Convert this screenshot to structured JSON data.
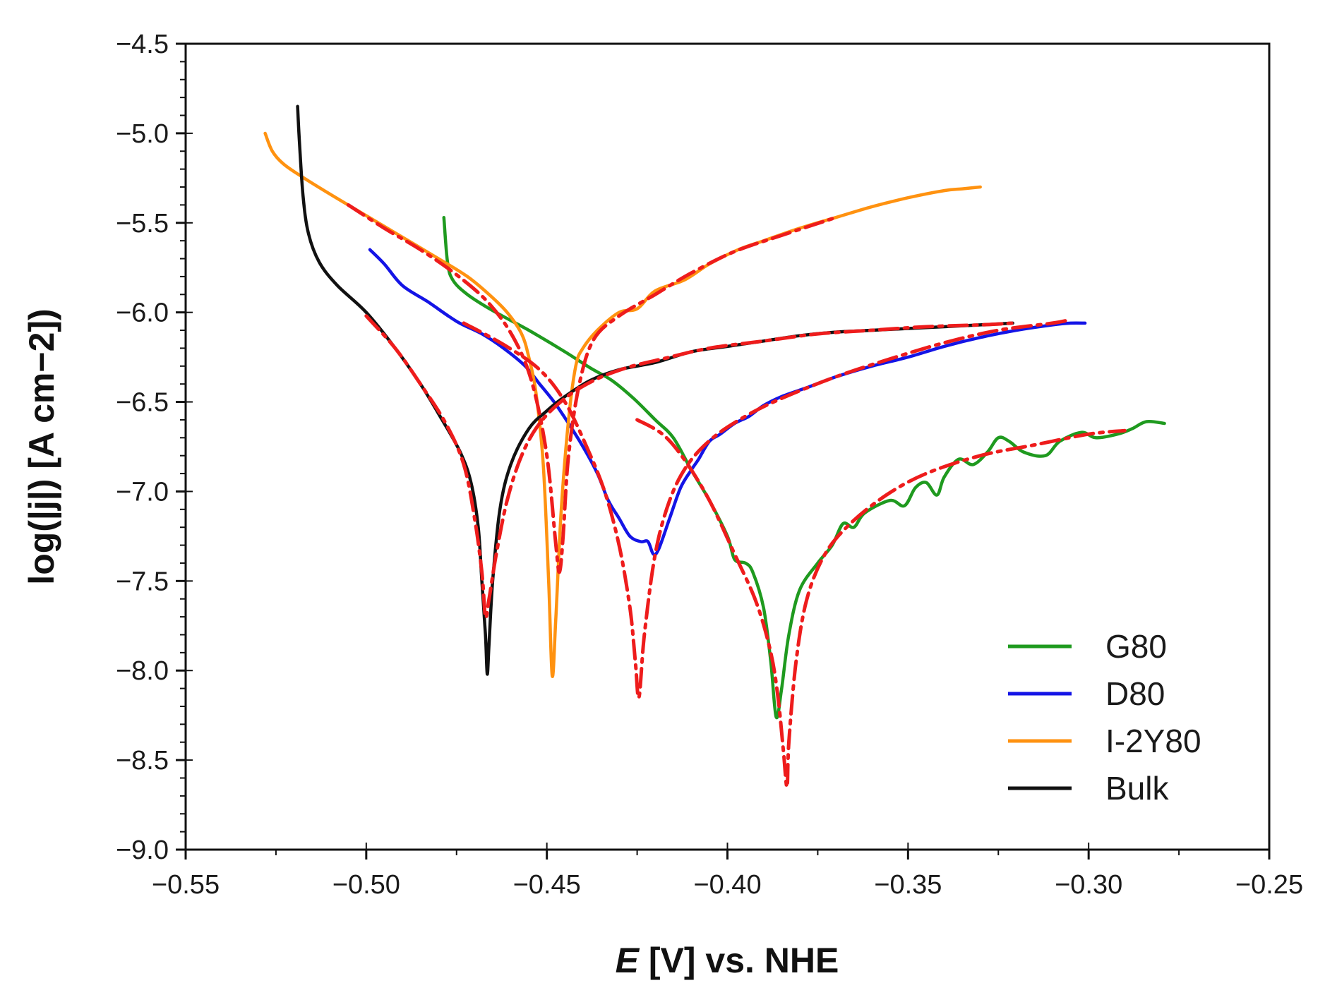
{
  "chart_data": {
    "type": "line",
    "title": "",
    "xlabel": {
      "italic": "E",
      "rest": " [V] vs. NHE"
    },
    "ylabel": "log(|j|) [A cm−2])",
    "xlim": [
      -0.55,
      -0.25
    ],
    "ylim": [
      -9.0,
      -4.5
    ],
    "xticks": [
      -0.55,
      -0.5,
      -0.45,
      -0.4,
      -0.35,
      -0.3,
      -0.25
    ],
    "xtick_labels": [
      "−0.55",
      "−0.50",
      "−0.45",
      "−0.40",
      "−0.35",
      "−0.30",
      "−0.25"
    ],
    "yticks": [
      -4.5,
      -5.0,
      -5.5,
      -6.0,
      -6.5,
      -7.0,
      -7.5,
      -8.0,
      -8.5,
      -9.0
    ],
    "ytick_labels": [
      "−4.5",
      "−5.0",
      "−5.5",
      "−6.0",
      "−6.5",
      "−7.0",
      "−7.5",
      "−8.0",
      "−8.5",
      "−9.0"
    ],
    "legend_position": "bottom-right",
    "fit_color": "#ee1c1c",
    "series": [
      {
        "name": "G80",
        "color": "#1f9a1f",
        "points": [
          [
            -0.4785,
            -5.47
          ],
          [
            -0.4775,
            -5.72
          ],
          [
            -0.476,
            -5.82
          ],
          [
            -0.472,
            -5.9
          ],
          [
            -0.465,
            -5.99
          ],
          [
            -0.455,
            -6.1
          ],
          [
            -0.445,
            -6.22
          ],
          [
            -0.438,
            -6.31
          ],
          [
            -0.432,
            -6.38
          ],
          [
            -0.426,
            -6.48
          ],
          [
            -0.42,
            -6.6
          ],
          [
            -0.415,
            -6.7
          ],
          [
            -0.41,
            -6.88
          ],
          [
            -0.405,
            -7.05
          ],
          [
            -0.4,
            -7.25
          ],
          [
            -0.398,
            -7.38
          ],
          [
            -0.395,
            -7.4
          ],
          [
            -0.393,
            -7.45
          ],
          [
            -0.39,
            -7.65
          ],
          [
            -0.388,
            -7.95
          ],
          [
            -0.3865,
            -8.26
          ],
          [
            -0.385,
            -8.1
          ],
          [
            -0.383,
            -7.8
          ],
          [
            -0.38,
            -7.55
          ],
          [
            -0.375,
            -7.4
          ],
          [
            -0.371,
            -7.3
          ],
          [
            -0.368,
            -7.18
          ],
          [
            -0.365,
            -7.2
          ],
          [
            -0.362,
            -7.12
          ],
          [
            -0.355,
            -7.05
          ],
          [
            -0.351,
            -7.08
          ],
          [
            -0.348,
            -6.98
          ],
          [
            -0.345,
            -6.95
          ],
          [
            -0.342,
            -7.02
          ],
          [
            -0.34,
            -6.92
          ],
          [
            -0.336,
            -6.82
          ],
          [
            -0.332,
            -6.85
          ],
          [
            -0.328,
            -6.78
          ],
          [
            -0.325,
            -6.7
          ],
          [
            -0.322,
            -6.72
          ],
          [
            -0.318,
            -6.78
          ],
          [
            -0.312,
            -6.8
          ],
          [
            -0.308,
            -6.72
          ],
          [
            -0.302,
            -6.67
          ],
          [
            -0.298,
            -6.7
          ],
          [
            -0.292,
            -6.68
          ],
          [
            -0.288,
            -6.65
          ],
          [
            -0.284,
            -6.61
          ],
          [
            -0.279,
            -6.62
          ]
        ]
      },
      {
        "name": "D80",
        "color": "#1414e6",
        "points": [
          [
            -0.499,
            -5.65
          ],
          [
            -0.495,
            -5.73
          ],
          [
            -0.49,
            -5.85
          ],
          [
            -0.483,
            -5.94
          ],
          [
            -0.475,
            -6.05
          ],
          [
            -0.468,
            -6.12
          ],
          [
            -0.462,
            -6.2
          ],
          [
            -0.456,
            -6.3
          ],
          [
            -0.452,
            -6.4
          ],
          [
            -0.448,
            -6.5
          ],
          [
            -0.444,
            -6.62
          ],
          [
            -0.44,
            -6.75
          ],
          [
            -0.436,
            -6.9
          ],
          [
            -0.433,
            -7.05
          ],
          [
            -0.43,
            -7.15
          ],
          [
            -0.427,
            -7.25
          ],
          [
            -0.424,
            -7.28
          ],
          [
            -0.422,
            -7.28
          ],
          [
            -0.4205,
            -7.35
          ],
          [
            -0.419,
            -7.32
          ],
          [
            -0.416,
            -7.15
          ],
          [
            -0.413,
            -6.98
          ],
          [
            -0.41,
            -6.88
          ],
          [
            -0.408,
            -6.82
          ],
          [
            -0.405,
            -6.72
          ],
          [
            -0.402,
            -6.68
          ],
          [
            -0.398,
            -6.62
          ],
          [
            -0.394,
            -6.58
          ],
          [
            -0.39,
            -6.52
          ],
          [
            -0.385,
            -6.47
          ],
          [
            -0.378,
            -6.42
          ],
          [
            -0.37,
            -6.36
          ],
          [
            -0.36,
            -6.3
          ],
          [
            -0.35,
            -6.25
          ],
          [
            -0.34,
            -6.19
          ],
          [
            -0.33,
            -6.14
          ],
          [
            -0.32,
            -6.1
          ],
          [
            -0.31,
            -6.07
          ],
          [
            -0.305,
            -6.06
          ],
          [
            -0.301,
            -6.06
          ]
        ]
      },
      {
        "name": "I-2Y80",
        "color": "#ff9210",
        "points": [
          [
            -0.528,
            -5.0
          ],
          [
            -0.526,
            -5.1
          ],
          [
            -0.523,
            -5.17
          ],
          [
            -0.518,
            -5.24
          ],
          [
            -0.51,
            -5.34
          ],
          [
            -0.5,
            -5.46
          ],
          [
            -0.49,
            -5.58
          ],
          [
            -0.48,
            -5.7
          ],
          [
            -0.472,
            -5.8
          ],
          [
            -0.466,
            -5.9
          ],
          [
            -0.461,
            -6.0
          ],
          [
            -0.457,
            -6.12
          ],
          [
            -0.455,
            -6.25
          ],
          [
            -0.453,
            -6.45
          ],
          [
            -0.451,
            -6.85
          ],
          [
            -0.4495,
            -7.5
          ],
          [
            -0.4485,
            -8.03
          ],
          [
            -0.4475,
            -7.7
          ],
          [
            -0.446,
            -7.1
          ],
          [
            -0.444,
            -6.6
          ],
          [
            -0.442,
            -6.3
          ],
          [
            -0.44,
            -6.2
          ],
          [
            -0.436,
            -6.1
          ],
          [
            -0.43,
            -6.0
          ],
          [
            -0.425,
            -5.98
          ],
          [
            -0.42,
            -5.88
          ],
          [
            -0.412,
            -5.82
          ],
          [
            -0.405,
            -5.73
          ],
          [
            -0.397,
            -5.65
          ],
          [
            -0.39,
            -5.6
          ],
          [
            -0.38,
            -5.53
          ],
          [
            -0.37,
            -5.47
          ],
          [
            -0.36,
            -5.41
          ],
          [
            -0.35,
            -5.36
          ],
          [
            -0.34,
            -5.32
          ],
          [
            -0.335,
            -5.31
          ],
          [
            -0.33,
            -5.3
          ]
        ]
      },
      {
        "name": "Bulk",
        "color": "#111111",
        "points": [
          [
            -0.519,
            -4.85
          ],
          [
            -0.5185,
            -5.05
          ],
          [
            -0.5175,
            -5.35
          ],
          [
            -0.516,
            -5.56
          ],
          [
            -0.513,
            -5.72
          ],
          [
            -0.508,
            -5.85
          ],
          [
            -0.5,
            -6.0
          ],
          [
            -0.492,
            -6.2
          ],
          [
            -0.485,
            -6.4
          ],
          [
            -0.479,
            -6.6
          ],
          [
            -0.474,
            -6.78
          ],
          [
            -0.471,
            -6.95
          ],
          [
            -0.469,
            -7.2
          ],
          [
            -0.468,
            -7.5
          ],
          [
            -0.467,
            -7.8
          ],
          [
            -0.4665,
            -8.02
          ],
          [
            -0.466,
            -7.85
          ],
          [
            -0.465,
            -7.5
          ],
          [
            -0.463,
            -7.1
          ],
          [
            -0.46,
            -6.85
          ],
          [
            -0.455,
            -6.65
          ],
          [
            -0.45,
            -6.55
          ],
          [
            -0.445,
            -6.47
          ],
          [
            -0.438,
            -6.38
          ],
          [
            -0.43,
            -6.32
          ],
          [
            -0.42,
            -6.28
          ],
          [
            -0.41,
            -6.22
          ],
          [
            -0.4,
            -6.19
          ],
          [
            -0.39,
            -6.16
          ],
          [
            -0.38,
            -6.13
          ],
          [
            -0.37,
            -6.11
          ],
          [
            -0.36,
            -6.1
          ],
          [
            -0.35,
            -6.09
          ],
          [
            -0.34,
            -6.08
          ],
          [
            -0.33,
            -6.07
          ],
          [
            -0.321,
            -6.06
          ]
        ]
      }
    ],
    "fits": [
      {
        "name": "G80 fit",
        "points": [
          [
            -0.425,
            -6.6
          ],
          [
            -0.418,
            -6.68
          ],
          [
            -0.412,
            -6.82
          ],
          [
            -0.405,
            -7.05
          ],
          [
            -0.398,
            -7.35
          ],
          [
            -0.392,
            -7.62
          ],
          [
            -0.388,
            -7.9
          ],
          [
            -0.386,
            -8.15
          ],
          [
            -0.3845,
            -8.45
          ],
          [
            -0.3835,
            -8.65
          ],
          [
            -0.383,
            -8.4
          ],
          [
            -0.381,
            -7.95
          ],
          [
            -0.378,
            -7.6
          ],
          [
            -0.373,
            -7.35
          ],
          [
            -0.366,
            -7.18
          ],
          [
            -0.356,
            -7.02
          ],
          [
            -0.345,
            -6.9
          ],
          [
            -0.33,
            -6.8
          ],
          [
            -0.315,
            -6.74
          ],
          [
            -0.3,
            -6.68
          ],
          [
            -0.29,
            -6.66
          ]
        ]
      },
      {
        "name": "D80 fit",
        "points": [
          [
            -0.473,
            -6.06
          ],
          [
            -0.462,
            -6.18
          ],
          [
            -0.452,
            -6.32
          ],
          [
            -0.445,
            -6.5
          ],
          [
            -0.439,
            -6.75
          ],
          [
            -0.434,
            -7.0
          ],
          [
            -0.43,
            -7.3
          ],
          [
            -0.427,
            -7.65
          ],
          [
            -0.4255,
            -7.95
          ],
          [
            -0.4245,
            -8.15
          ],
          [
            -0.423,
            -7.8
          ],
          [
            -0.42,
            -7.35
          ],
          [
            -0.416,
            -7.05
          ],
          [
            -0.411,
            -6.85
          ],
          [
            -0.404,
            -6.7
          ],
          [
            -0.395,
            -6.58
          ],
          [
            -0.385,
            -6.48
          ],
          [
            -0.37,
            -6.36
          ],
          [
            -0.355,
            -6.26
          ],
          [
            -0.34,
            -6.17
          ],
          [
            -0.325,
            -6.1
          ],
          [
            -0.31,
            -6.06
          ],
          [
            -0.305,
            -6.04
          ]
        ]
      },
      {
        "name": "I-2Y80 fit",
        "points": [
          [
            -0.505,
            -5.4
          ],
          [
            -0.495,
            -5.53
          ],
          [
            -0.485,
            -5.65
          ],
          [
            -0.475,
            -5.79
          ],
          [
            -0.466,
            -5.95
          ],
          [
            -0.459,
            -6.15
          ],
          [
            -0.454,
            -6.4
          ],
          [
            -0.45,
            -6.8
          ],
          [
            -0.4475,
            -7.3
          ],
          [
            -0.4465,
            -7.45
          ],
          [
            -0.4455,
            -7.25
          ],
          [
            -0.444,
            -6.8
          ],
          [
            -0.441,
            -6.4
          ],
          [
            -0.437,
            -6.15
          ],
          [
            -0.43,
            -6.02
          ],
          [
            -0.42,
            -5.9
          ],
          [
            -0.41,
            -5.78
          ],
          [
            -0.398,
            -5.66
          ],
          [
            -0.385,
            -5.57
          ],
          [
            -0.37,
            -5.47
          ]
        ]
      },
      {
        "name": "Bulk fit",
        "points": [
          [
            -0.5,
            -6.02
          ],
          [
            -0.492,
            -6.2
          ],
          [
            -0.485,
            -6.4
          ],
          [
            -0.478,
            -6.62
          ],
          [
            -0.473,
            -6.85
          ],
          [
            -0.47,
            -7.15
          ],
          [
            -0.468,
            -7.45
          ],
          [
            -0.467,
            -7.7
          ],
          [
            -0.466,
            -7.6
          ],
          [
            -0.464,
            -7.35
          ],
          [
            -0.461,
            -7.05
          ],
          [
            -0.457,
            -6.8
          ],
          [
            -0.452,
            -6.62
          ],
          [
            -0.445,
            -6.48
          ],
          [
            -0.437,
            -6.38
          ],
          [
            -0.428,
            -6.31
          ],
          [
            -0.418,
            -6.26
          ],
          [
            -0.405,
            -6.2
          ],
          [
            -0.39,
            -6.16
          ],
          [
            -0.375,
            -6.12
          ],
          [
            -0.36,
            -6.1
          ],
          [
            -0.345,
            -6.08
          ],
          [
            -0.33,
            -6.07
          ],
          [
            -0.321,
            -6.06
          ]
        ]
      }
    ]
  }
}
